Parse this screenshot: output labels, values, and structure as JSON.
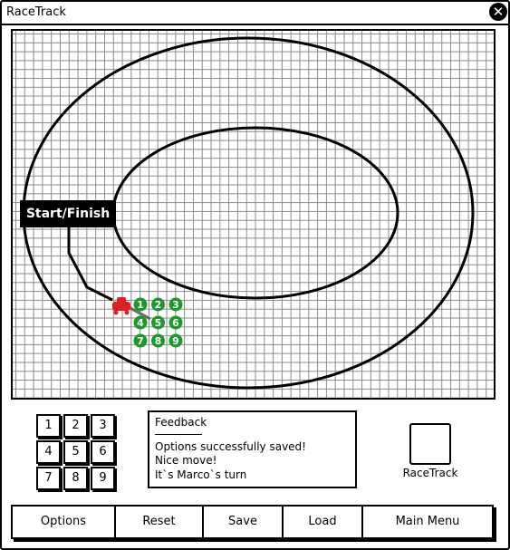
{
  "window": {
    "title": "RaceTrack",
    "close_glyph": "✕"
  },
  "board": {
    "start_label": "Start/Finish",
    "car_color": "#e02020",
    "move_color": "#1a9a2a",
    "move_options": [
      "1",
      "2",
      "3",
      "4",
      "5",
      "6",
      "7",
      "8",
      "9"
    ]
  },
  "keypad": {
    "keys": [
      "1",
      "2",
      "3",
      "4",
      "5",
      "6",
      "7",
      "8",
      "9"
    ]
  },
  "feedback": {
    "title": "Feedback",
    "lines": [
      "Options successfully saved!",
      "Nice move!",
      "It`s Marco`s turn"
    ]
  },
  "logo": {
    "label": "RaceTrack"
  },
  "menu": {
    "buttons": [
      "Options",
      "Reset",
      "Save",
      "Load",
      "Main Menu"
    ]
  }
}
